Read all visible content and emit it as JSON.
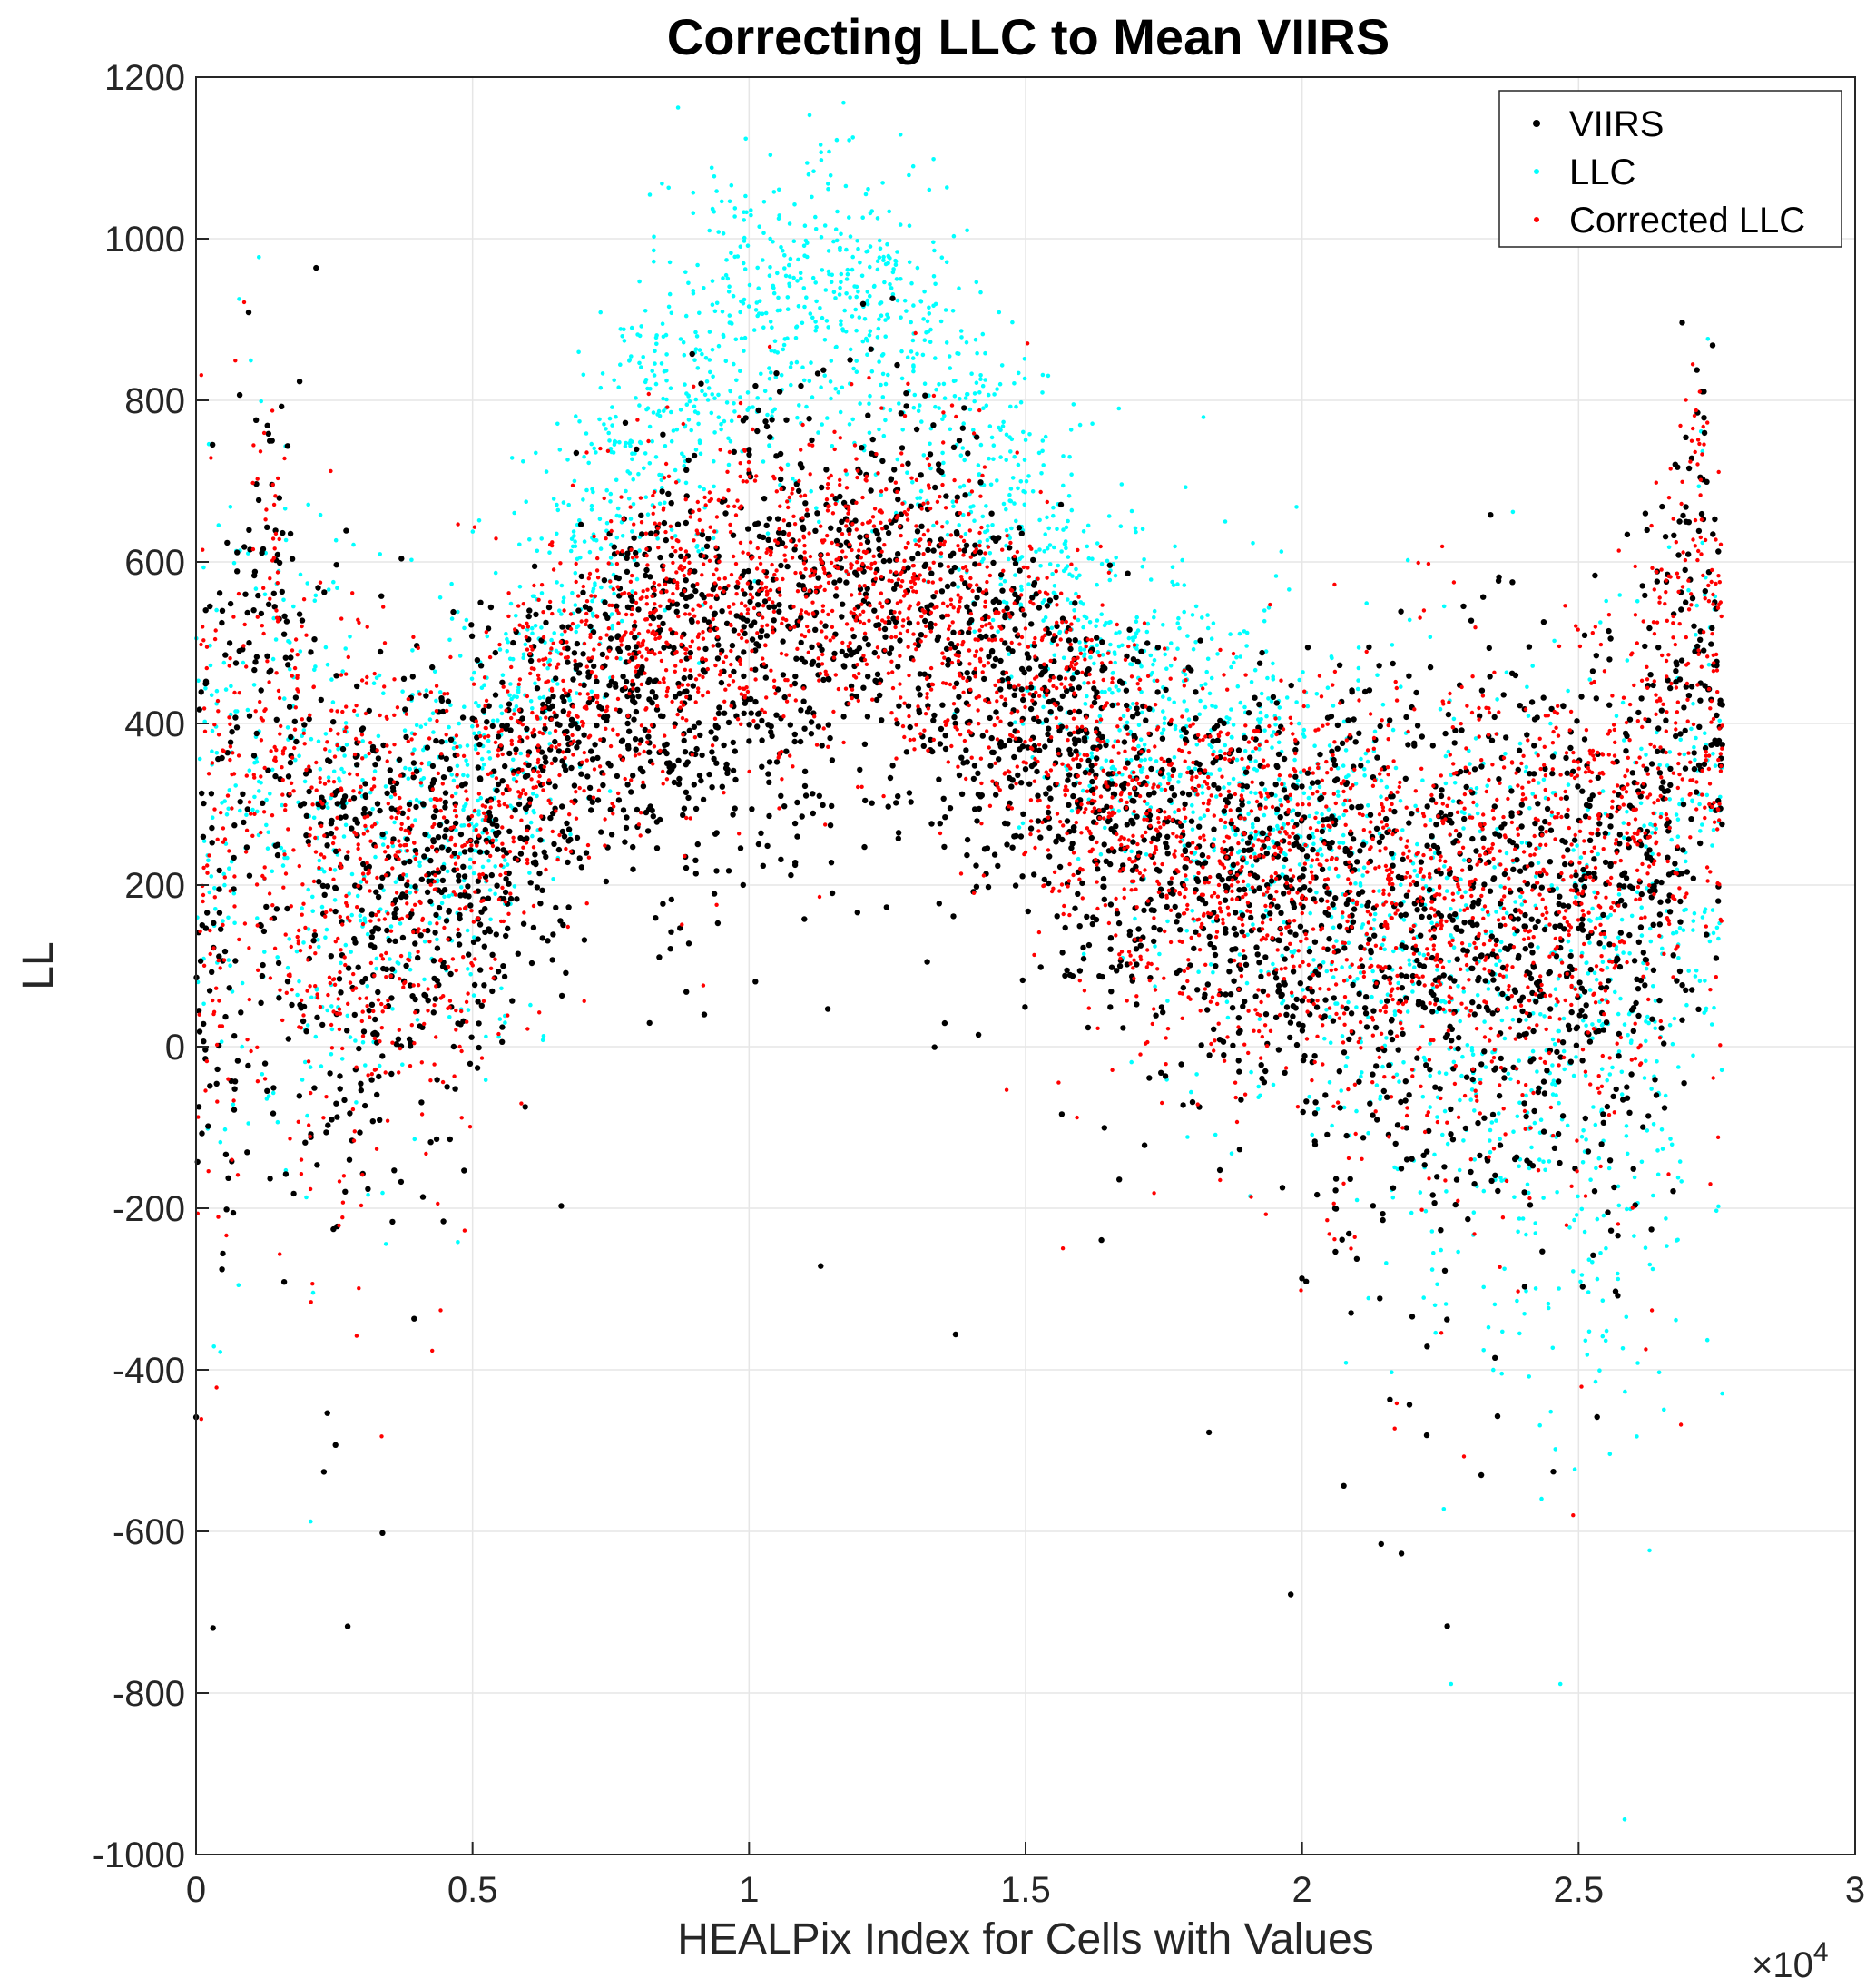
{
  "chart_data": {
    "type": "scatter",
    "title": "Correcting LLC to Mean VIIRS",
    "xlabel": "HEALPix Index for Cells with Values",
    "ylabel": "LL",
    "x_exponent_label": "×10",
    "x_exponent_power": "4",
    "xlim": [
      0,
      3
    ],
    "ylim": [
      -1000,
      1200
    ],
    "x_ticks": [
      "0",
      "0.5",
      "1",
      "1.5",
      "2",
      "2.5",
      "3"
    ],
    "y_ticks": [
      "-1000",
      "-800",
      "-600",
      "-400",
      "-200",
      "0",
      "200",
      "400",
      "600",
      "800",
      "1000",
      "1200"
    ],
    "grid": true,
    "legend_position": "top-right",
    "series": [
      {
        "name": "VIIRS",
        "color": "#000000",
        "profile": [
          [
            0.0,
            150
          ],
          [
            0.05,
            220
          ],
          [
            0.13,
            400
          ],
          [
            0.2,
            220
          ],
          [
            0.3,
            180
          ],
          [
            0.5,
            230
          ],
          [
            0.7,
            420
          ],
          [
            0.9,
            460
          ],
          [
            1.05,
            520
          ],
          [
            1.2,
            560
          ],
          [
            1.35,
            520
          ],
          [
            1.5,
            400
          ],
          [
            1.7,
            260
          ],
          [
            1.9,
            220
          ],
          [
            2.1,
            160
          ],
          [
            2.2,
            120
          ],
          [
            2.4,
            140
          ],
          [
            2.55,
            180
          ],
          [
            2.65,
            300
          ],
          [
            2.72,
            500
          ],
          [
            2.76,
            350
          ]
        ],
        "spread": [
          [
            0.0,
            260
          ],
          [
            0.2,
            260
          ],
          [
            0.3,
            180
          ],
          [
            0.5,
            120
          ],
          [
            0.7,
            110
          ],
          [
            1.0,
            140
          ],
          [
            1.3,
            130
          ],
          [
            1.6,
            120
          ],
          [
            1.9,
            120
          ],
          [
            2.1,
            170
          ],
          [
            2.3,
            180
          ],
          [
            2.55,
            170
          ],
          [
            2.76,
            200
          ]
        ]
      },
      {
        "name": "LLC",
        "color": "#00ffff",
        "profile": [
          [
            0.0,
            160
          ],
          [
            0.05,
            250
          ],
          [
            0.13,
            430
          ],
          [
            0.2,
            260
          ],
          [
            0.3,
            220
          ],
          [
            0.5,
            320
          ],
          [
            0.65,
            500
          ],
          [
            0.8,
            760
          ],
          [
            0.95,
            880
          ],
          [
            1.1,
            930
          ],
          [
            1.25,
            920
          ],
          [
            1.4,
            760
          ],
          [
            1.55,
            560
          ],
          [
            1.7,
            420
          ],
          [
            1.9,
            330
          ],
          [
            2.1,
            180
          ],
          [
            2.2,
            100
          ],
          [
            2.4,
            40
          ],
          [
            2.55,
            20
          ],
          [
            2.65,
            60
          ],
          [
            2.72,
            350
          ],
          [
            2.76,
            250
          ]
        ],
        "spread": [
          [
            0.0,
            240
          ],
          [
            0.3,
            160
          ],
          [
            0.6,
            120
          ],
          [
            0.9,
            110
          ],
          [
            1.2,
            100
          ],
          [
            1.5,
            120
          ],
          [
            1.8,
            110
          ],
          [
            2.1,
            170
          ],
          [
            2.3,
            200
          ],
          [
            2.55,
            210
          ],
          [
            2.76,
            220
          ]
        ]
      },
      {
        "name": "Corrected LLC",
        "color": "#ff0000",
        "profile": [
          [
            0.0,
            180
          ],
          [
            0.05,
            250
          ],
          [
            0.13,
            430
          ],
          [
            0.2,
            250
          ],
          [
            0.3,
            210
          ],
          [
            0.5,
            240
          ],
          [
            0.65,
            430
          ],
          [
            0.85,
            540
          ],
          [
            1.05,
            560
          ],
          [
            1.2,
            580
          ],
          [
            1.35,
            560
          ],
          [
            1.5,
            450
          ],
          [
            1.7,
            280
          ],
          [
            1.9,
            230
          ],
          [
            2.1,
            200
          ],
          [
            2.2,
            180
          ],
          [
            2.4,
            190
          ],
          [
            2.55,
            230
          ],
          [
            2.65,
            300
          ],
          [
            2.72,
            540
          ],
          [
            2.76,
            380
          ]
        ],
        "spread": [
          [
            0.0,
            230
          ],
          [
            0.3,
            160
          ],
          [
            0.6,
            110
          ],
          [
            0.9,
            100
          ],
          [
            1.2,
            90
          ],
          [
            1.5,
            110
          ],
          [
            1.8,
            110
          ],
          [
            2.1,
            130
          ],
          [
            2.3,
            140
          ],
          [
            2.55,
            150
          ],
          [
            2.76,
            200
          ]
        ]
      }
    ]
  }
}
